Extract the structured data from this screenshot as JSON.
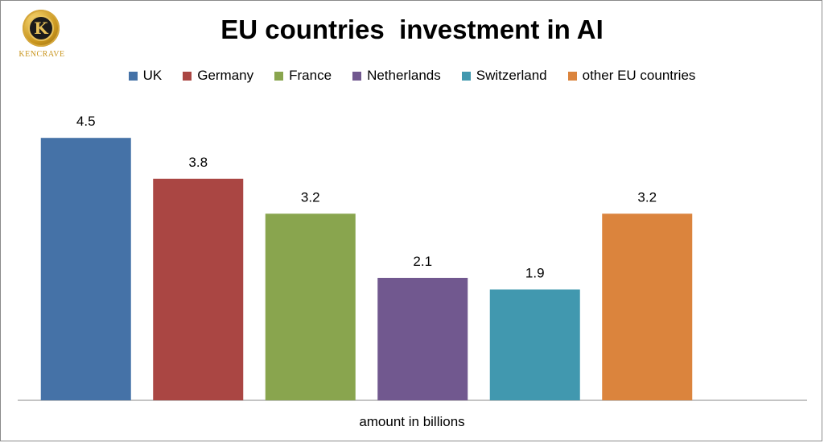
{
  "logo": {
    "letter": "K",
    "text": "KENCRAVE"
  },
  "chart_data": {
    "type": "bar",
    "title": "EU countries  investment in AI",
    "xlabel": "amount in billions",
    "ylabel": "",
    "ylim": [
      0,
      5
    ],
    "grid": false,
    "legend_position": "top",
    "series": [
      {
        "name": "UK",
        "value": 4.5,
        "label": "4.5",
        "color": "#4572a7"
      },
      {
        "name": "Germany",
        "value": 3.8,
        "label": "3.8",
        "color": "#aa4643"
      },
      {
        "name": "France",
        "value": 3.2,
        "label": "3.2",
        "color": "#89a54e"
      },
      {
        "name": "Netherlands",
        "value": 2.1,
        "label": "2.1",
        "color": "#71588f"
      },
      {
        "name": "Switzerland",
        "value": 1.9,
        "label": "1.9",
        "color": "#4198af"
      },
      {
        "name": "other EU countries",
        "value": 3.2,
        "label": "3.2",
        "color": "#db843d"
      }
    ]
  }
}
